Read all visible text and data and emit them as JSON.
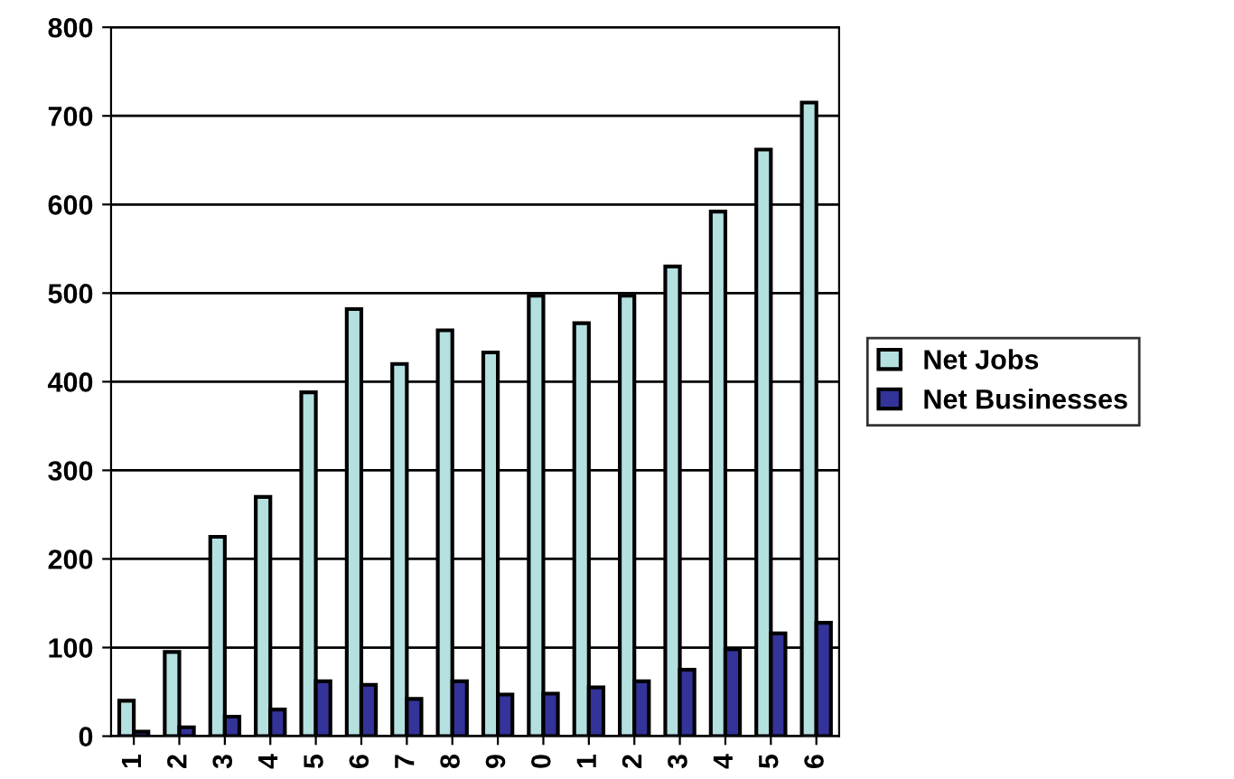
{
  "chart_data": {
    "type": "bar",
    "categories": [
      "1",
      "2",
      "3",
      "4",
      "5",
      "6",
      "7",
      "8",
      "9",
      "0",
      "1",
      "2",
      "3",
      "4",
      "5",
      "6"
    ],
    "series": [
      {
        "name": "Net Jobs",
        "color": "#b4e0e0",
        "values": [
          40,
          95,
          225,
          270,
          388,
          482,
          420,
          458,
          433,
          497,
          466,
          497,
          530,
          592,
          662,
          715
        ]
      },
      {
        "name": "Net Businesses",
        "color": "#333399",
        "values": [
          5,
          10,
          22,
          30,
          62,
          58,
          42,
          62,
          47,
          48,
          55,
          62,
          75,
          98,
          116,
          128
        ]
      }
    ],
    "ylim": [
      0,
      800
    ],
    "yticks": [
      0,
      100,
      200,
      300,
      400,
      500,
      600,
      700,
      800
    ],
    "grid": "y",
    "legend": "right"
  }
}
